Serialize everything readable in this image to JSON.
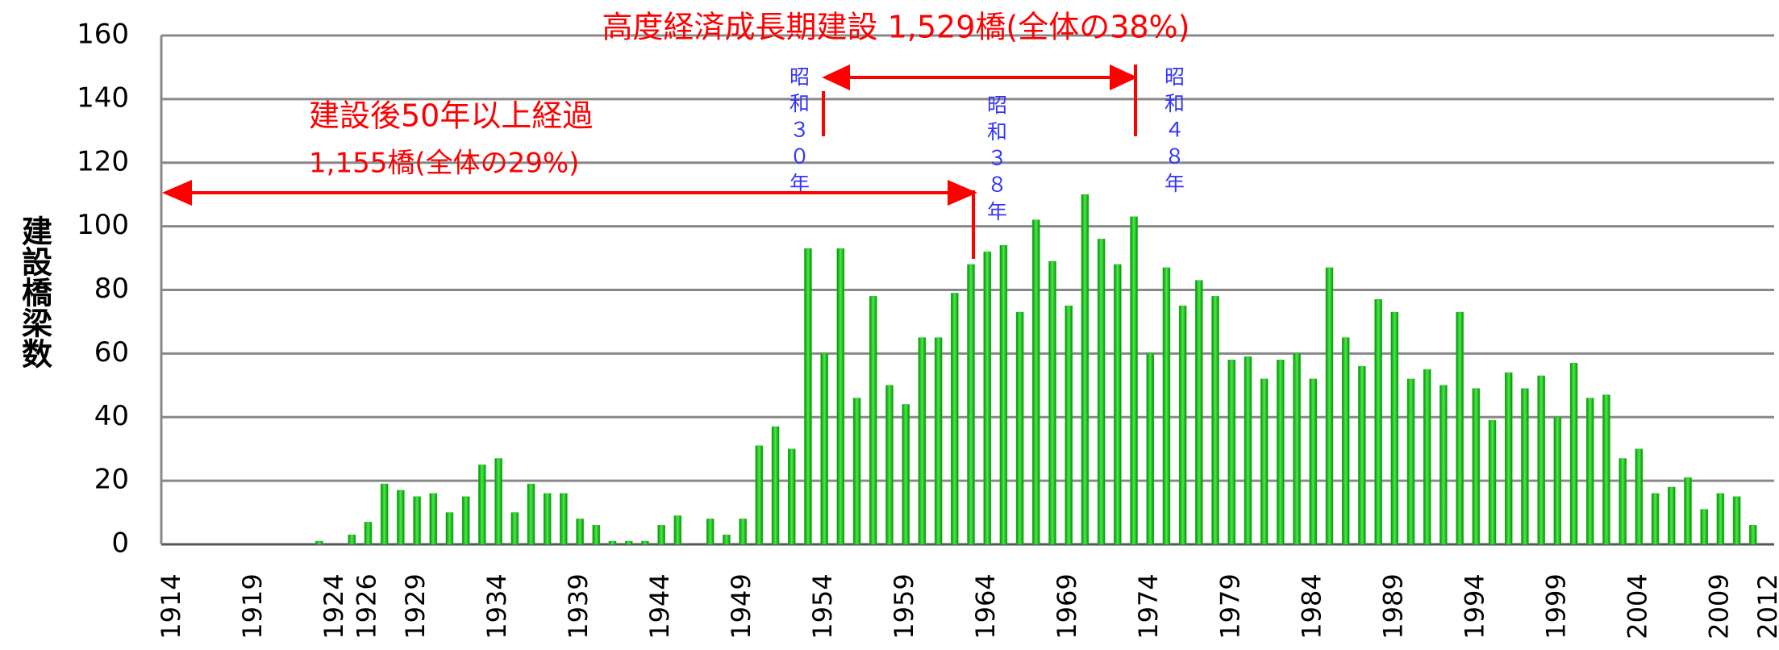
{
  "chart_data": {
    "type": "bar",
    "ylabel": "建設橋梁数",
    "annotations": [
      "高度経済成長期建設 1,529橋(全体の38%)",
      "建設後50年以上経過",
      "1,155橋(全体の29%)",
      "昭和３０年",
      "昭和３８年",
      "昭和４８年"
    ],
    "categories": [
      "1914",
      null,
      null,
      null,
      null,
      "1919",
      null,
      null,
      null,
      null,
      "1924",
      null,
      "1926",
      null,
      null,
      "1929",
      null,
      null,
      null,
      null,
      "1934",
      null,
      null,
      null,
      null,
      "1939",
      null,
      null,
      null,
      null,
      "1944",
      null,
      null,
      null,
      null,
      "1949",
      null,
      null,
      null,
      null,
      "1954",
      null,
      null,
      null,
      null,
      "1959",
      null,
      null,
      null,
      null,
      "1964",
      null,
      null,
      null,
      null,
      "1969",
      null,
      null,
      null,
      null,
      "1974",
      null,
      null,
      null,
      null,
      "1979",
      null,
      null,
      null,
      null,
      "1984",
      null,
      null,
      null,
      null,
      "1989",
      null,
      null,
      null,
      null,
      "1994",
      null,
      null,
      null,
      null,
      "1999",
      null,
      null,
      null,
      null,
      "2004",
      null,
      null,
      null,
      null,
      "2009",
      null,
      null,
      "2012"
    ],
    "values": [
      0,
      0,
      0,
      0,
      0,
      0,
      0,
      0,
      0,
      1,
      0,
      3,
      7,
      19,
      17,
      15,
      16,
      10,
      15,
      25,
      27,
      10,
      19,
      16,
      16,
      8,
      6,
      1,
      1,
      1,
      6,
      9,
      0,
      8,
      3,
      8,
      31,
      37,
      30,
      93,
      60,
      93,
      46,
      78,
      50,
      44,
      65,
      65,
      79,
      88,
      92,
      94,
      73,
      102,
      89,
      75,
      110,
      96,
      88,
      103,
      60,
      87,
      75,
      83,
      78,
      58,
      59,
      52,
      58,
      60,
      52,
      87,
      65,
      56,
      77,
      73,
      52,
      55,
      50,
      73,
      49,
      39,
      54,
      49,
      53,
      40,
      57,
      46,
      47,
      27,
      30,
      16,
      18,
      21,
      11,
      16,
      15,
      6,
      0
    ],
    "color": "#22bb22",
    "ylim": [
      0,
      160
    ],
    "yticks": [
      0,
      20,
      40,
      60,
      80,
      100,
      120,
      140,
      160
    ],
    "grid": true
  }
}
